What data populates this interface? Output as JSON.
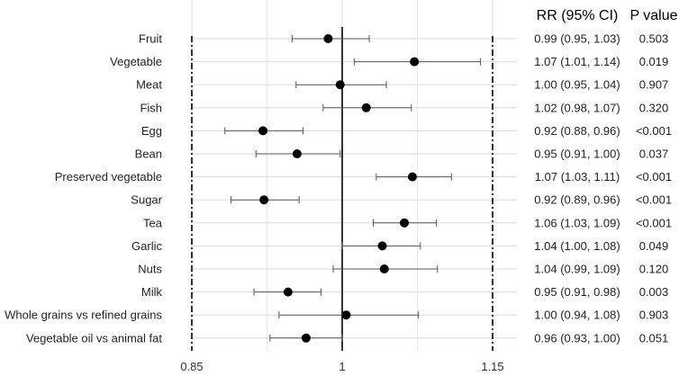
{
  "chart_data": {
    "type": "forest",
    "headers": {
      "rr": "RR (95% CI)",
      "p": "P value"
    },
    "x_ticks": [
      {
        "value": 0.85,
        "label": "0.85"
      },
      {
        "value": 1.0,
        "label": "1"
      },
      {
        "value": 1.15,
        "label": "1.15"
      }
    ],
    "xlim": [
      0.85,
      1.15
    ],
    "reference_line": 1.0,
    "dashed_lines": [
      0.85,
      1.15
    ],
    "grid": true,
    "rows": [
      {
        "label": "Fruit",
        "rr": 0.986,
        "lo": 0.95,
        "hi": 1.027,
        "rr_text": "0.99 (0.95, 1.03)",
        "p": "0.503"
      },
      {
        "label": "Vegetable",
        "rr": 1.072,
        "lo": 1.012,
        "hi": 1.138,
        "rr_text": "1.07 (1.01, 1.14)",
        "p": "0.019"
      },
      {
        "label": "Meat",
        "rr": 0.998,
        "lo": 0.954,
        "hi": 1.044,
        "rr_text": "1.00 (0.95, 1.04)",
        "p": "0.907"
      },
      {
        "label": "Fish",
        "rr": 1.024,
        "lo": 0.981,
        "hi": 1.069,
        "rr_text": "1.02 (0.98, 1.07)",
        "p": "0.320"
      },
      {
        "label": "Egg",
        "rr": 0.921,
        "lo": 0.883,
        "hi": 0.961,
        "rr_text": "0.92 (0.88, 0.96)",
        "p": "<0.001"
      },
      {
        "label": "Bean",
        "rr": 0.955,
        "lo": 0.914,
        "hi": 0.998,
        "rr_text": "0.95 (0.91, 1.00)",
        "p": "0.037"
      },
      {
        "label": "Preserved vegetable",
        "rr": 1.07,
        "lo": 1.034,
        "hi": 1.109,
        "rr_text": "1.07 (1.03, 1.11)",
        "p": "<0.001"
      },
      {
        "label": "Sugar",
        "rr": 0.922,
        "lo": 0.889,
        "hi": 0.957,
        "rr_text": "0.92 (0.89, 0.96)",
        "p": "<0.001"
      },
      {
        "label": "Tea",
        "rr": 1.062,
        "lo": 1.031,
        "hi": 1.094,
        "rr_text": "1.06 (1.03, 1.09)",
        "p": "<0.001"
      },
      {
        "label": "Garlic",
        "rr": 1.04,
        "lo": 1.0,
        "hi": 1.078,
        "rr_text": "1.04 (1.00, 1.08)",
        "p": "0.049"
      },
      {
        "label": "Nuts",
        "rr": 1.042,
        "lo": 0.991,
        "hi": 1.095,
        "rr_text": "1.04 (0.99, 1.09)",
        "p": "0.120"
      },
      {
        "label": "Milk",
        "rr": 0.946,
        "lo": 0.912,
        "hi": 0.979,
        "rr_text": "0.95 (0.91, 0.98)",
        "p": "0.003"
      },
      {
        "label": "Whole grains vs refined grains",
        "rr": 1.004,
        "lo": 0.937,
        "hi": 1.076,
        "rr_text": "1.00 (0.94, 1.08)",
        "p": "0.903"
      },
      {
        "label": "Vegetable oil vs animal fat",
        "rr": 0.964,
        "lo": 0.928,
        "hi": 1.0,
        "rr_text": "0.96 (0.93, 1.00)",
        "p": "0.051"
      }
    ],
    "colors": {
      "point": "#000000",
      "whisker": "#555555",
      "grid": "#d9d9d9",
      "line": "#000000"
    }
  }
}
